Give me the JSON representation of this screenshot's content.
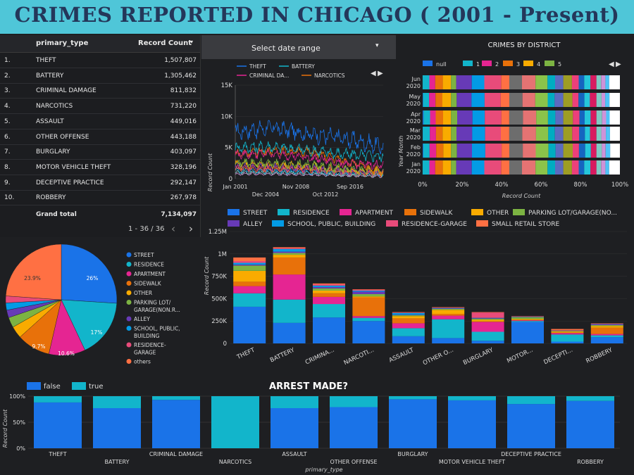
{
  "title": "CRIMES REPORTED IN CHICAGO ( 2001 - Present)",
  "table": {
    "col1": "primary_type",
    "col2": "Record Count",
    "sort_icon": "caret-down-icon",
    "rows": [
      {
        "n": "1.",
        "type": "THEFT",
        "count": "1,507,807"
      },
      {
        "n": "2.",
        "type": "BATTERY",
        "count": "1,305,462"
      },
      {
        "n": "3.",
        "type": "CRIMINAL DAMAGE",
        "count": "811,832"
      },
      {
        "n": "4.",
        "type": "NARCOTICS",
        "count": "731,220"
      },
      {
        "n": "5.",
        "type": "ASSAULT",
        "count": "449,016"
      },
      {
        "n": "6.",
        "type": "OTHER OFFENSE",
        "count": "443,188"
      },
      {
        "n": "7.",
        "type": "BURGLARY",
        "count": "403,097"
      },
      {
        "n": "8.",
        "type": "MOTOR VEHICLE THEFT",
        "count": "328,196"
      },
      {
        "n": "9.",
        "type": "DECEPTIVE PRACTICE",
        "count": "292,147"
      },
      {
        "n": "10.",
        "type": "ROBBERY",
        "count": "267,978"
      }
    ],
    "grand_total_label": "Grand total",
    "grand_total": "7,134,097",
    "pager": "1 - 36 / 36",
    "prev": "‹",
    "next": "›"
  },
  "date_range": {
    "label": "Select date range",
    "arrow": "▾"
  },
  "line_chart": {
    "legend": [
      "THEFT",
      "BATTERY",
      "CRIMINAL DA...",
      "NARCOTICS"
    ],
    "ylabel": "Record Count",
    "yticks": [
      "15K",
      "10K",
      "5K",
      "0"
    ],
    "xticks_top": [
      "Jan 2001",
      "Nov 2008",
      "Sep 2016"
    ],
    "xticks_bottom": [
      "Dec 2004",
      "Oct 2012"
    ],
    "nav": [
      "◀",
      "▶"
    ]
  },
  "district_chart": {
    "title": "CRIMES BY DISTRICT",
    "legend": [
      "null",
      "1",
      "2",
      "3",
      "4",
      "5"
    ],
    "legend_colors": [
      "#1a73e8",
      "#12b5cb",
      "#e52592",
      "#e8710a",
      "#f9ab00",
      "#7cb342"
    ],
    "rows": [
      [
        "Jun",
        "2020"
      ],
      [
        "May",
        "2020"
      ],
      [
        "Apr",
        "2020"
      ],
      [
        "Mar",
        "2020"
      ],
      [
        "Feb",
        "2020"
      ],
      [
        "Jan",
        "2020"
      ]
    ],
    "xticks": [
      "0%",
      "20%",
      "40%",
      "60%",
      "80%",
      "100%"
    ],
    "xlabel": "Record Count",
    "ylabel": "Year Month",
    "segment_colors": [
      "#1a73e8",
      "#12b5cb",
      "#e52592",
      "#e8710a",
      "#f9ab00",
      "#7cb342",
      "#673ab7",
      "#039be5",
      "#e84b7a",
      "#ff7043",
      "#6d6d6d",
      "#e57373",
      "#8bc34a",
      "#00acc1",
      "#5c6bc0",
      "#9e9d24",
      "#ec407a",
      "#1565c0",
      "#26c6da",
      "#d81b60",
      "#80cbc4",
      "#ce93d8",
      "#4fc3f7",
      "#ffffff"
    ],
    "nav": [
      "◀",
      "▶"
    ]
  },
  "pie": {
    "legend": [
      "STREET",
      "RESIDENCE",
      "APARTMENT",
      "SIDEWALK",
      "OTHER",
      "PARKING LOT/",
      "GARAGE(NON.R...",
      "ALLEY",
      "SCHOOL, PUBLIC,",
      "BUILDING",
      "RESIDENCE-",
      "GARAGE",
      "others"
    ],
    "labels": [
      "26%",
      "17%",
      "10.6%",
      "9.7%",
      "23.9%"
    ],
    "colors": [
      "#1a73e8",
      "#12b5cb",
      "#e52592",
      "#e8710a",
      "#f9ab00",
      "#7cb342",
      "#673ab7",
      "#039be5",
      "#e84b7a",
      "#ff7043"
    ]
  },
  "stack_chart": {
    "legend": [
      "STREET",
      "RESIDENCE",
      "APARTMENT",
      "SIDEWALK",
      "OTHER",
      "PARKING LOT/GARAGE(NO...",
      "ALLEY",
      "SCHOOL, PUBLIC, BUILDING",
      "RESIDENCE-GARAGE",
      "SMALL RETAIL STORE"
    ],
    "colors": [
      "#1a73e8",
      "#12b5cb",
      "#e52592",
      "#e8710a",
      "#f9ab00",
      "#7cb342",
      "#673ab7",
      "#039be5",
      "#e84b7a",
      "#ff7043"
    ],
    "ylabel": "Record Count",
    "yticks": [
      "1.25M",
      "1M",
      "750K",
      "500K",
      "250K",
      "0"
    ],
    "categories": [
      "THEFT",
      "BATTERY",
      "CRIMINA...",
      "NARCOTI...",
      "ASSAULT",
      "OTHER O...",
      "BURGLARY",
      "MOTOR...",
      "DECEPTI...",
      "ROBBERY"
    ]
  },
  "arrest_chart": {
    "title": "ARREST MADE?",
    "legend": [
      "false",
      "true"
    ],
    "colors": [
      "#1a73e8",
      "#12b5cb"
    ],
    "ylabel": "Record Count",
    "yticks": [
      "100%",
      "50%",
      "0%"
    ],
    "xlabel": "primary_type",
    "categories_top": [
      "THEFT",
      "CRIMINAL DAMAGE",
      "ASSAULT",
      "BURGLARY",
      "DECEPTIVE PRACTICE"
    ],
    "categories_bottom": [
      "BATTERY",
      "NARCOTICS",
      "OTHER OFFENSE",
      "MOTOR VEHICLE THEFT",
      "ROBBERY"
    ]
  },
  "chart_data": [
    {
      "type": "table",
      "columns": [
        "primary_type",
        "Record Count"
      ],
      "categories": [
        "THEFT",
        "BATTERY",
        "CRIMINAL DAMAGE",
        "NARCOTICS",
        "ASSAULT",
        "OTHER OFFENSE",
        "BURGLARY",
        "MOTOR VEHICLE THEFT",
        "DECEPTIVE PRACTICE",
        "ROBBERY"
      ],
      "values": [
        1507807,
        1305462,
        811832,
        731220,
        449016,
        443188,
        403097,
        328196,
        292147,
        267978
      ]
    },
    {
      "type": "line",
      "x": [
        "Jan 2001",
        "Dec 2004",
        "Nov 2008",
        "Oct 2012",
        "Sep 2016"
      ],
      "series": [
        {
          "name": "THEFT",
          "values": [
            7500,
            8200,
            7200,
            6400,
            5200
          ]
        },
        {
          "name": "BATTERY",
          "values": [
            5000,
            5100,
            4600,
            3900,
            3600
          ]
        },
        {
          "name": "CRIMINAL DA...",
          "values": [
            3900,
            4000,
            3400,
            2400,
            2200
          ]
        },
        {
          "name": "NARCOTICS",
          "values": [
            4000,
            4500,
            4300,
            2800,
            1000
          ]
        }
      ],
      "ylabel": "Record Count",
      "ylim": [
        0,
        15000
      ]
    },
    {
      "type": "bar",
      "title": "CRIMES BY DISTRICT",
      "orientation": "horizontal-100%-stacked",
      "categories": [
        "Jun 2020",
        "May 2020",
        "Apr 2020",
        "Mar 2020",
        "Feb 2020",
        "Jan 2020"
      ],
      "xlabel": "Record Count",
      "ylabel": "Year Month",
      "xlim": [
        0,
        100
      ],
      "series": [
        {
          "name": "null",
          "values": [
            0.2,
            0.2,
            0.2,
            0.2,
            0.2,
            0.2
          ]
        },
        {
          "name": "1",
          "values": [
            7,
            7,
            6.5,
            6.5,
            7,
            7.5
          ]
        },
        {
          "name": "2",
          "values": [
            5,
            5,
            5.5,
            5.5,
            5,
            4.5
          ]
        },
        {
          "name": "3",
          "values": [
            6,
            6,
            6.5,
            6,
            6,
            6
          ]
        },
        {
          "name": "4",
          "values": [
            7,
            7,
            7,
            7,
            7,
            7
          ]
        },
        {
          "name": "5",
          "values": [
            5,
            5,
            5,
            5,
            5,
            5
          ]
        }
      ]
    },
    {
      "type": "pie",
      "categories": [
        "STREET",
        "RESIDENCE",
        "APARTMENT",
        "SIDEWALK",
        "OTHER",
        "PARKING LOT/GARAGE(NON.R...",
        "ALLEY",
        "SCHOOL, PUBLIC, BUILDING",
        "RESIDENCE-GARAGE",
        "others"
      ],
      "values": [
        26,
        17,
        10.6,
        9.7,
        3.5,
        3,
        2.2,
        2.1,
        2.0,
        23.9
      ]
    },
    {
      "type": "bar",
      "orientation": "vertical-stacked",
      "categories": [
        "THEFT",
        "BATTERY",
        "CRIMINA...",
        "NARCOTI...",
        "ASSAULT",
        "OTHER O...",
        "BURGLARY",
        "MOTOR...",
        "DECEPTI...",
        "ROBBERY"
      ],
      "ylabel": "Record Count",
      "ylim": [
        0,
        1250000
      ],
      "series": [
        {
          "name": "STREET",
          "values": [
            410000,
            230000,
            290000,
            250000,
            80000,
            60000,
            30000,
            240000,
            20000,
            70000
          ]
        },
        {
          "name": "RESIDENCE",
          "values": [
            150000,
            260000,
            150000,
            35000,
            90000,
            210000,
            100000,
            10000,
            80000,
            20000
          ]
        },
        {
          "name": "APARTMENT",
          "values": [
            80000,
            280000,
            80000,
            20000,
            55000,
            40000,
            110000,
            8000,
            15000,
            15000
          ]
        },
        {
          "name": "SIDEWALK",
          "values": [
            50000,
            190000,
            40000,
            210000,
            55000,
            20000,
            5000,
            5000,
            5000,
            70000
          ]
        },
        {
          "name": "OTHER",
          "values": [
            120000,
            30000,
            30000,
            10000,
            25000,
            45000,
            20000,
            10000,
            15000,
            20000
          ]
        },
        {
          "name": "PARKING LOT/GARAGE(NO...",
          "values": [
            60000,
            20000,
            25000,
            25000,
            10000,
            10000,
            10000,
            20000,
            5000,
            10000
          ]
        },
        {
          "name": "ALLEY",
          "values": [
            10000,
            15000,
            15000,
            30000,
            5000,
            5000,
            5000,
            5000,
            2000,
            10000
          ]
        },
        {
          "name": "SCHOOL, PUBLIC, BUILDING",
          "values": [
            20000,
            30000,
            15000,
            10000,
            20000,
            5000,
            5000,
            2000,
            2000,
            2000
          ]
        },
        {
          "name": "RESIDENCE-GARAGE",
          "values": [
            20000,
            10000,
            15000,
            10000,
            5000,
            5000,
            60000,
            2000,
            2000,
            2000
          ]
        },
        {
          "name": "SMALL RETAIL STORE",
          "values": [
            40000,
            10000,
            10000,
            5000,
            5000,
            5000,
            5000,
            2000,
            15000,
            5000
          ]
        }
      ]
    },
    {
      "type": "bar",
      "title": "ARREST MADE?",
      "orientation": "vertical-100%-stacked",
      "categories": [
        "THEFT",
        "BATTERY",
        "CRIMINAL DAMAGE",
        "NARCOTICS",
        "ASSAULT",
        "OTHER OFFENSE",
        "BURGLARY",
        "MOTOR VEHICLE THEFT",
        "DECEPTIVE PRACTICE",
        "ROBBERY"
      ],
      "xlabel": "primary_type",
      "ylabel": "Record Count",
      "ylim": [
        0,
        100
      ],
      "series": [
        {
          "name": "false",
          "values": [
            88,
            77,
            93,
            0,
            77,
            79,
            94,
            92,
            85,
            91
          ]
        },
        {
          "name": "true",
          "values": [
            12,
            23,
            7,
            100,
            23,
            21,
            6,
            8,
            15,
            9
          ]
        }
      ]
    }
  ]
}
